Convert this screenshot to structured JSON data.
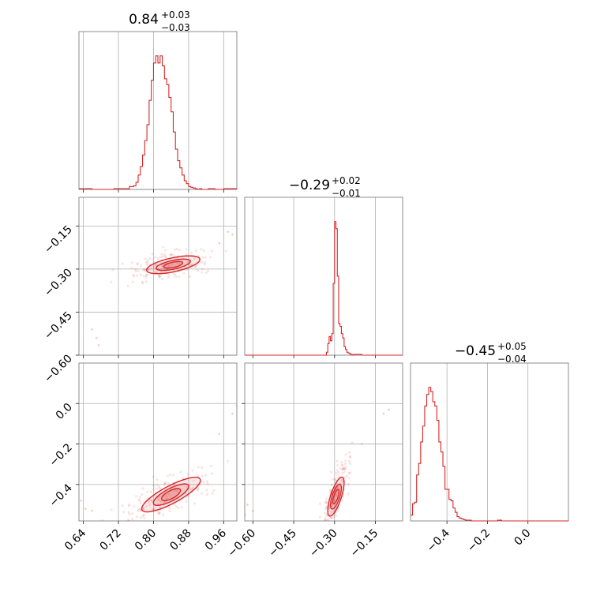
{
  "chart_data": {
    "type": "corner",
    "color": "#d62728",
    "grid": true,
    "panels": [
      {
        "id": "hist-0",
        "type": "histogram",
        "title_value": "0.84",
        "title_plus": "+0.03",
        "title_minus": "−0.03",
        "xlim": [
          0.63,
          0.99
        ],
        "bins_x": [
          0.63,
          0.66,
          0.71,
          0.745,
          0.755,
          0.76,
          0.765,
          0.77,
          0.775,
          0.78,
          0.785,
          0.79,
          0.795,
          0.8,
          0.805,
          0.81,
          0.815,
          0.82,
          0.825,
          0.83,
          0.835,
          0.84,
          0.845,
          0.85,
          0.855,
          0.86,
          0.865,
          0.87,
          0.875,
          0.88,
          0.885,
          0.89,
          0.895,
          0.9,
          0.905,
          0.91,
          0.915,
          0.925,
          0.94,
          0.96,
          0.99
        ],
        "counts": [
          0.005,
          0.0,
          0.005,
          0.02,
          0.025,
          0.05,
          0.1,
          0.16,
          0.24,
          0.34,
          0.45,
          0.62,
          0.76,
          0.88,
          0.93,
          0.88,
          0.93,
          0.86,
          0.77,
          0.73,
          0.64,
          0.54,
          0.4,
          0.28,
          0.2,
          0.15,
          0.1,
          0.06,
          0.04,
          0.02,
          0.015,
          0.01,
          0.005,
          0.0,
          0.005,
          0.0,
          0.0,
          0.005,
          0.0,
          0.005
        ]
      },
      {
        "id": "hist-1",
        "type": "histogram",
        "title_value": "−0.29",
        "title_plus": "+0.02",
        "title_minus": "−0.01",
        "xlim": [
          -0.63,
          -0.05
        ],
        "bins_x": [
          -0.63,
          -0.33,
          -0.325,
          -0.32,
          -0.315,
          -0.31,
          -0.305,
          -0.3,
          -0.295,
          -0.29,
          -0.285,
          -0.28,
          -0.275,
          -0.27,
          -0.265,
          -0.26,
          -0.255,
          -0.25,
          -0.245,
          -0.24,
          -0.235,
          -0.23,
          -0.2,
          -0.05
        ],
        "counts": [
          0.0,
          0.02,
          0.08,
          0.13,
          0.1,
          0.15,
          0.5,
          0.93,
          0.88,
          0.55,
          0.22,
          0.2,
          0.15,
          0.12,
          0.06,
          0.04,
          0.02,
          0.015,
          0.01,
          0.005,
          0.0,
          0.005,
          0.0
        ]
      },
      {
        "id": "hist-2",
        "type": "histogram",
        "title_value": "−0.45",
        "title_plus": "+0.05",
        "title_minus": "−0.04",
        "xlim": [
          -0.58,
          0.2
        ],
        "bins_x": [
          -0.58,
          -0.57,
          -0.56,
          -0.55,
          -0.54,
          -0.53,
          -0.52,
          -0.51,
          -0.5,
          -0.49,
          -0.48,
          -0.47,
          -0.46,
          -0.45,
          -0.44,
          -0.43,
          -0.42,
          -0.41,
          -0.4,
          -0.39,
          -0.38,
          -0.37,
          -0.36,
          -0.35,
          -0.34,
          -0.33,
          -0.32,
          -0.31,
          -0.3,
          -0.28,
          -0.25,
          -0.15,
          -0.13,
          0.2
        ],
        "counts": [
          0.04,
          0.12,
          0.13,
          0.32,
          0.4,
          0.55,
          0.66,
          0.8,
          0.88,
          0.93,
          0.9,
          0.83,
          0.8,
          0.7,
          0.55,
          0.48,
          0.38,
          0.22,
          0.22,
          0.15,
          0.14,
          0.09,
          0.06,
          0.03,
          0.02,
          0.015,
          0.01,
          0.005,
          0.005,
          0.0,
          0.0,
          0.005,
          0.0
        ]
      },
      {
        "id": "scatter-1-0",
        "type": "2d-density",
        "xlim": [
          0.63,
          0.99
        ],
        "ylim": [
          -0.6,
          -0.05
        ],
        "center": [
          0.845,
          -0.285
        ],
        "corr_slope": 0.55,
        "contours": [
          {
            "rx": 0.022,
            "ry": 0.006,
            "angle_deg": -12,
            "level": "inner"
          },
          {
            "rx": 0.04,
            "ry": 0.01,
            "angle_deg": -12,
            "level": "middle"
          },
          {
            "rx": 0.062,
            "ry": 0.016,
            "angle_deg": -12,
            "level": "outer"
          }
        ],
        "outliers": [
          [
            0.66,
            -0.51
          ],
          [
            0.67,
            -0.54
          ],
          [
            0.675,
            -0.565
          ],
          [
            0.97,
            -0.17
          ],
          [
            0.98,
            -0.18
          ],
          [
            0.95,
            -0.21
          ]
        ]
      },
      {
        "id": "scatter-2-0",
        "type": "2d-density",
        "xlim": [
          0.63,
          0.99
        ],
        "ylim": [
          -0.58,
          0.2
        ],
        "center": [
          0.84,
          -0.45
        ],
        "corr_slope": 1.35,
        "contours": [
          {
            "rx": 0.024,
            "ry": 0.009,
            "angle_deg": -28,
            "level": "inner"
          },
          {
            "rx": 0.045,
            "ry": 0.014,
            "angle_deg": -28,
            "level": "middle"
          },
          {
            "rx": 0.075,
            "ry": 0.02,
            "angle_deg": -28,
            "level": "outer"
          }
        ],
        "outliers": [
          [
            0.635,
            -0.48
          ],
          [
            0.645,
            -0.52
          ],
          [
            0.98,
            -0.05
          ],
          [
            0.99,
            -0.01
          ],
          [
            0.95,
            -0.15
          ],
          [
            0.66,
            -0.53
          ]
        ]
      },
      {
        "id": "scatter-2-1",
        "type": "2d-density",
        "xlim": [
          -0.63,
          -0.05
        ],
        "ylim": [
          -0.58,
          0.2
        ],
        "center": [
          -0.295,
          -0.46
        ],
        "corr_slope": 2.5,
        "contours": [
          {
            "rx": 0.008,
            "ry": 0.028,
            "angle_deg": 18,
            "level": "inner"
          },
          {
            "rx": 0.014,
            "ry": 0.048,
            "angle_deg": 18,
            "level": "middle"
          },
          {
            "rx": 0.02,
            "ry": 0.075,
            "angle_deg": 18,
            "level": "outer"
          }
        ],
        "outliers": [
          [
            -0.62,
            -0.5
          ],
          [
            -0.6,
            -0.53
          ],
          [
            -0.12,
            -0.05
          ],
          [
            -0.1,
            -0.03
          ],
          [
            -0.2,
            -0.2
          ],
          [
            -0.63,
            -0.55
          ]
        ]
      }
    ],
    "axes": {
      "x0": {
        "ticks": [
          0.64,
          0.72,
          0.8,
          0.88,
          0.96
        ],
        "labels": [
          "0.64",
          "0.72",
          "0.80",
          "0.88",
          "0.96"
        ]
      },
      "x1": {
        "ticks": [
          -0.6,
          -0.45,
          -0.3,
          -0.15
        ],
        "labels": [
          "−0.60",
          "−0.45",
          "−0.30",
          "−0.15"
        ]
      },
      "x2": {
        "ticks": [
          -0.4,
          -0.2,
          0.0
        ],
        "labels": [
          "−0.4",
          "−0.2",
          "0.0"
        ]
      },
      "y1": {
        "ticks": [
          -0.15,
          -0.3,
          -0.45,
          -0.6
        ],
        "labels": [
          "−0.15",
          "−0.30",
          "−0.45",
          "−0.60"
        ]
      },
      "y2": {
        "ticks": [
          0.0,
          -0.2,
          -0.4
        ],
        "labels": [
          "0.0",
          "−0.2",
          "−0.4"
        ]
      }
    }
  }
}
